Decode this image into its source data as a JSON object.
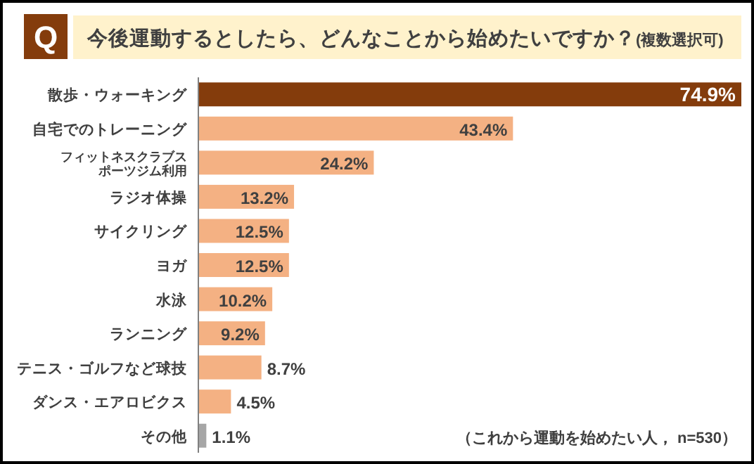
{
  "chart_data": {
    "type": "bar",
    "orientation": "horizontal",
    "title": "今後運動するとしたら、どんなことから始めたいですか？",
    "subtitle": "(複数選択可)",
    "annotations": [
      "Q",
      "（これから運動を始めたい人， n=530）"
    ],
    "categories": [
      "散歩・ウォーキング",
      "自宅でのトレーニング",
      "フィットネスクラブスポーツジム利用",
      "ラジオ体操",
      "サイクリング",
      "ヨガ",
      "水泳",
      "ランニング",
      "テニス・ゴルフなど球技",
      "ダンス・エアロビクス",
      "その他"
    ],
    "values": [
      74.9,
      43.4,
      24.2,
      13.2,
      12.5,
      12.5,
      10.2,
      9.2,
      8.7,
      4.5,
      1.1
    ],
    "value_labels": [
      "74.9%",
      "43.4%",
      "24.2%",
      "13.2%",
      "12.5%",
      "12.5%",
      "10.2%",
      "9.2%",
      "8.7%",
      "4.5%",
      "1.1%"
    ],
    "colors": [
      "#843c0c",
      "#f4b183",
      "#f4b183",
      "#f4b183",
      "#f4b183",
      "#f4b183",
      "#f4b183",
      "#f4b183",
      "#f4b183",
      "#f4b183",
      "#a6a6a6"
    ]
  }
}
